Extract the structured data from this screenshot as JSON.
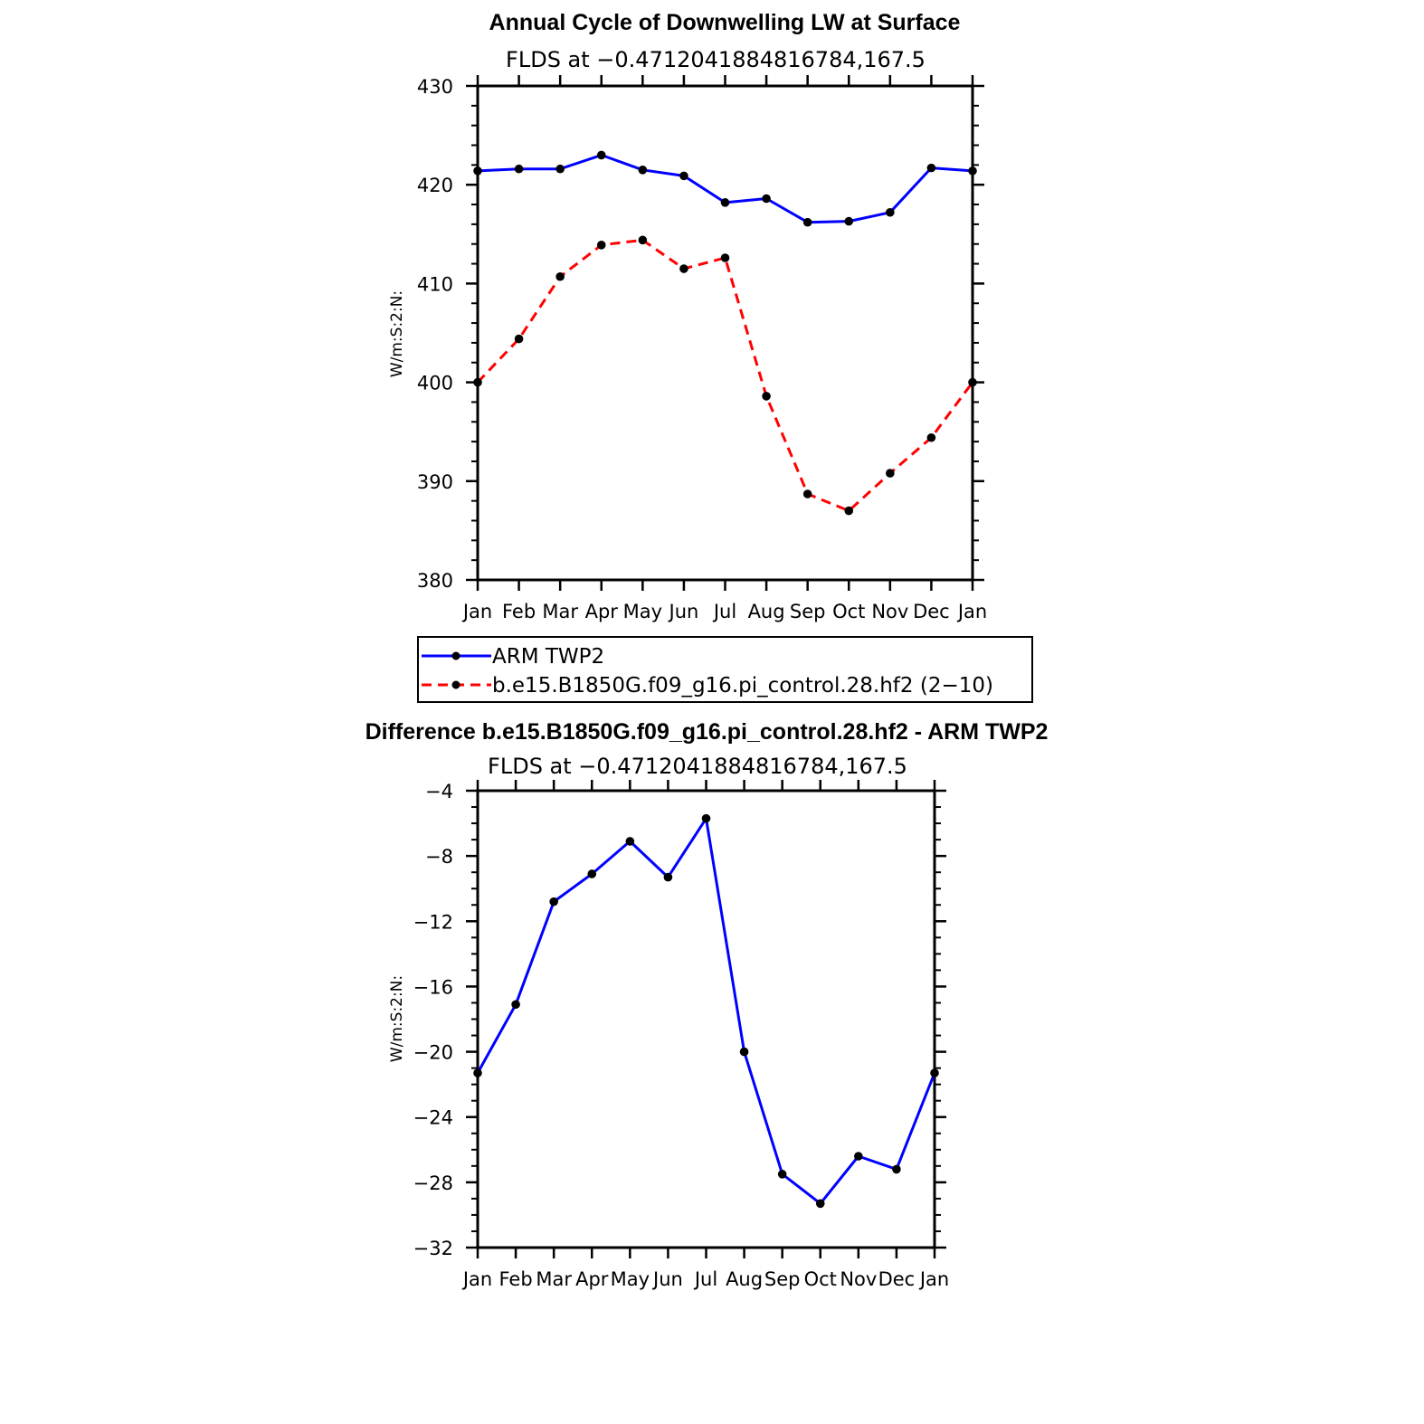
{
  "chart_data": [
    {
      "type": "line",
      "title": "Annual Cycle of Downwelling LW at Surface",
      "subtitle": "FLDS at −0.4712041884816784,167.5",
      "xlabel": "",
      "ylabel": "W/m:S:2:N:",
      "categories": [
        "Jan",
        "Feb",
        "Mar",
        "Apr",
        "May",
        "Jun",
        "Jul",
        "Aug",
        "Sep",
        "Oct",
        "Nov",
        "Dec",
        "Jan"
      ],
      "ylim": [
        380,
        430
      ],
      "yticks": [
        "380",
        "390",
        "400",
        "410",
        "420",
        "430"
      ],
      "series": [
        {
          "name": "ARM TWP2",
          "color": "#0000ff",
          "style": "solid",
          "values": [
            421.4,
            421.6,
            421.6,
            423.0,
            421.5,
            420.9,
            418.2,
            418.6,
            416.2,
            416.3,
            417.2,
            421.7,
            421.4
          ]
        },
        {
          "name": "b.e15.B1850G.f09_g16.pi_control.28.hf2 (2−10)",
          "color": "#ff0000",
          "style": "dashed",
          "values": [
            400.0,
            404.4,
            410.7,
            413.9,
            414.4,
            411.5,
            412.6,
            398.6,
            388.7,
            387.0,
            390.8,
            394.4,
            400.0
          ]
        }
      ],
      "legend": "below"
    },
    {
      "type": "line",
      "title": "Difference b.e15.B1850G.f09_g16.pi_control.28.hf2 - ARM TWP2",
      "subtitle": "FLDS at −0.4712041884816784,167.5",
      "xlabel": "",
      "ylabel": "W/m:S:2:N:",
      "categories": [
        "Jan",
        "Feb",
        "Mar",
        "Apr",
        "May",
        "Jun",
        "Jul",
        "Aug",
        "Sep",
        "Oct",
        "Nov",
        "Dec",
        "Jan"
      ],
      "ylim": [
        -32,
        -4
      ],
      "yticks": [
        "−32",
        "−28",
        "−24",
        "−20",
        "−16",
        "−12",
        "−8",
        "−4"
      ],
      "series": [
        {
          "name": "Difference",
          "color": "#0000ff",
          "style": "solid",
          "values": [
            -21.3,
            -17.1,
            -10.8,
            -9.1,
            -7.1,
            -9.3,
            -5.7,
            -20.0,
            -27.5,
            -29.3,
            -26.4,
            -27.2,
            -21.3
          ]
        }
      ]
    }
  ]
}
